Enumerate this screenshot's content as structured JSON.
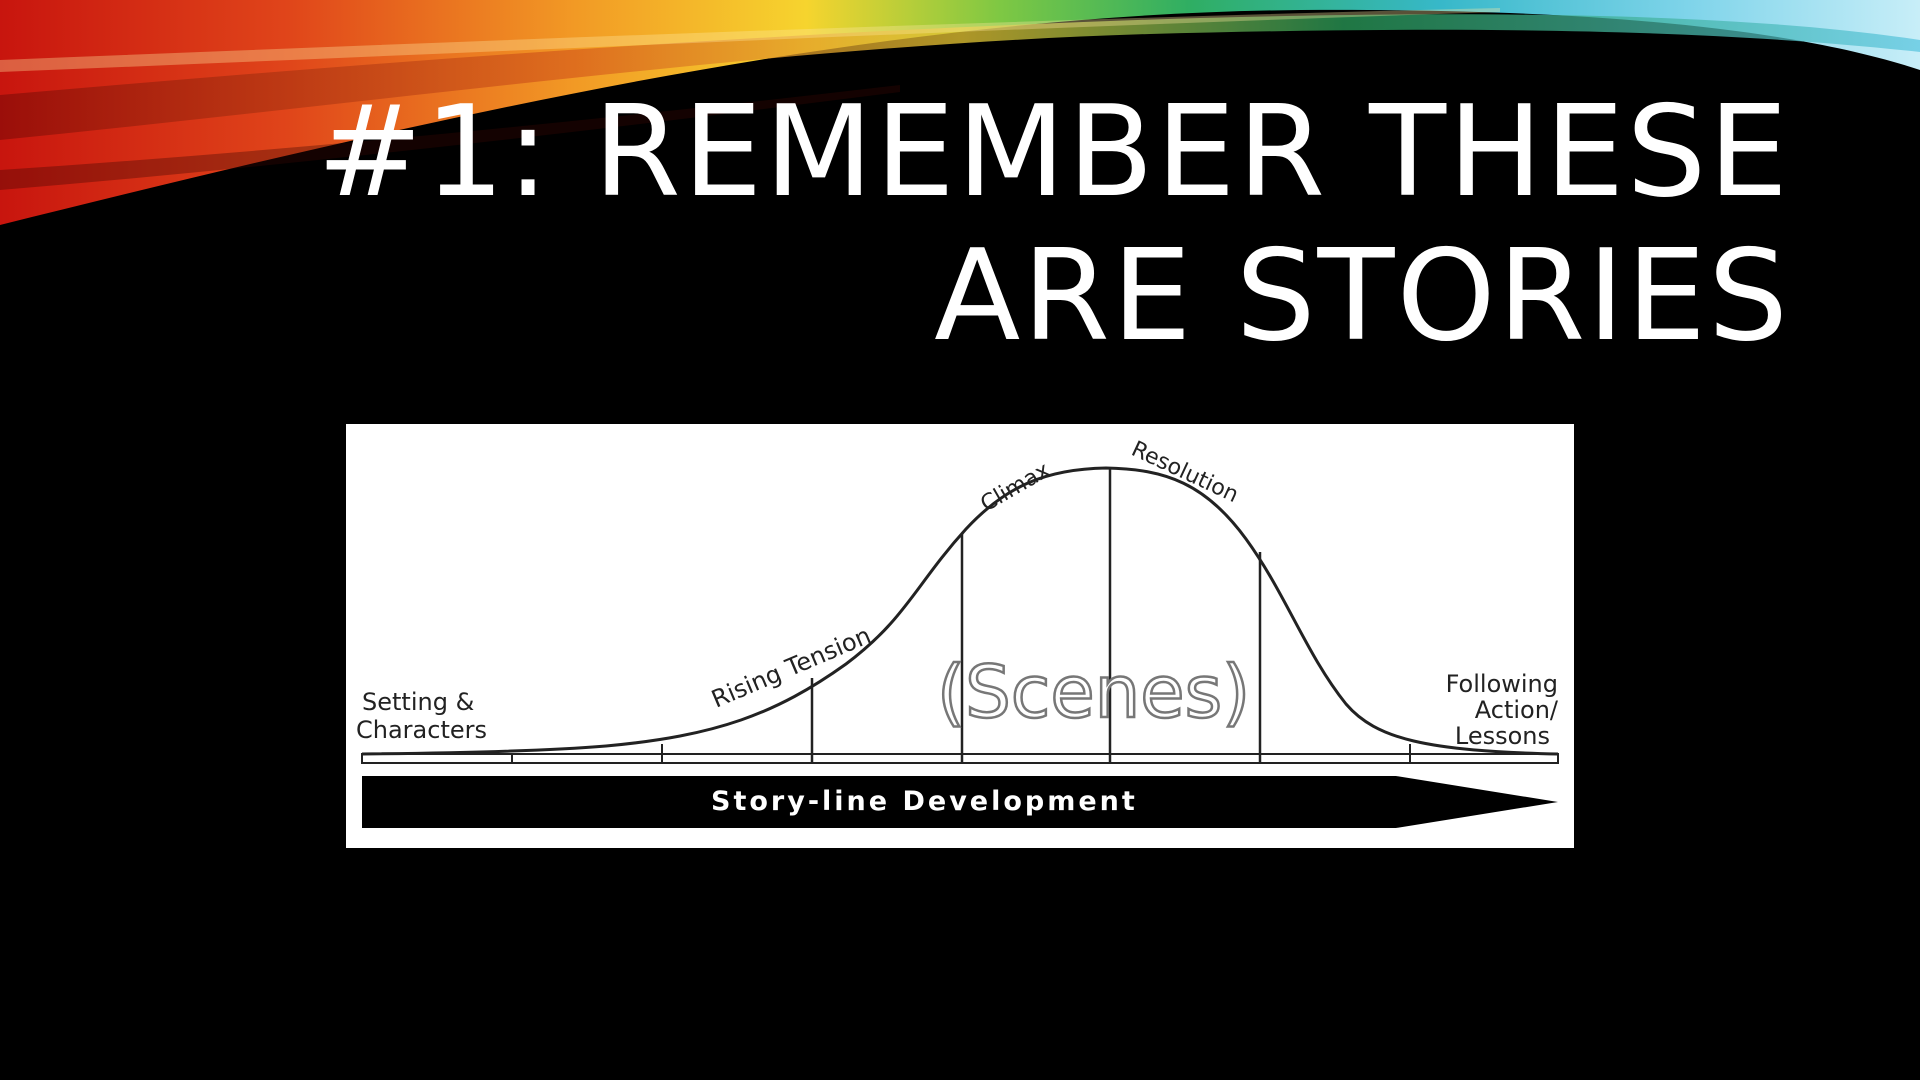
{
  "slide": {
    "title_line1": "#1: REMEMBER THESE",
    "title_line2": "ARE STORIES"
  },
  "diagram": {
    "labels": {
      "setting": [
        "Setting &",
        "Characters"
      ],
      "rising": "Rising Tension",
      "climax": "Climax",
      "resolution": "Resolution",
      "following": [
        "Following",
        "Action/",
        "Lessons"
      ],
      "scenes": "(Scenes)",
      "arrow": "Story-line Development"
    }
  }
}
